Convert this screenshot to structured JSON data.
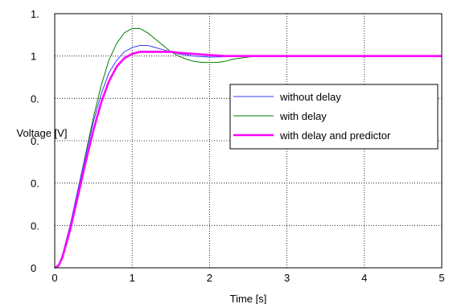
{
  "chart_data": {
    "type": "line",
    "xlabel": "Time [s]",
    "ylabel": "Voltage [V]",
    "xlim": [
      0,
      5
    ],
    "ylim": [
      0,
      1.2
    ],
    "xticks": [
      {
        "value": 0,
        "label": "0"
      },
      {
        "value": 1,
        "label": "1"
      },
      {
        "value": 2,
        "label": "2"
      },
      {
        "value": 3,
        "label": "3"
      },
      {
        "value": 4,
        "label": "4"
      },
      {
        "value": 5,
        "label": "5"
      }
    ],
    "yticks": [
      {
        "value": 0,
        "label": "0"
      },
      {
        "value": 0.2,
        "label": "0."
      },
      {
        "value": 0.4,
        "label": "0."
      },
      {
        "value": 0.6,
        "label": "0."
      },
      {
        "value": 0.8,
        "label": "0."
      },
      {
        "value": 1.0,
        "label": "1"
      },
      {
        "value": 1.2,
        "label": "1."
      }
    ],
    "grid": true,
    "legend_position": "right",
    "series": [
      {
        "name": "without delay",
        "color": "#3a3aff",
        "x": [
          0,
          0.05,
          0.1,
          0.2,
          0.3,
          0.4,
          0.5,
          0.6,
          0.7,
          0.8,
          0.9,
          1.0,
          1.1,
          1.2,
          1.3,
          1.4,
          1.6,
          1.8,
          2.0,
          2.2,
          2.4,
          2.6,
          3.0,
          3.5,
          4.0,
          4.5,
          5.0
        ],
        "y": [
          0,
          0.01,
          0.06,
          0.2,
          0.37,
          0.53,
          0.69,
          0.82,
          0.92,
          0.98,
          1.02,
          1.04,
          1.05,
          1.05,
          1.04,
          1.03,
          1.01,
          1.0,
          0.995,
          0.997,
          1.0,
          1.0,
          1.0,
          1.0,
          1.0,
          1.0,
          1.0
        ]
      },
      {
        "name": "with delay",
        "color": "#008000",
        "x": [
          0,
          0.05,
          0.1,
          0.2,
          0.3,
          0.4,
          0.5,
          0.6,
          0.7,
          0.8,
          0.9,
          1.0,
          1.1,
          1.2,
          1.3,
          1.4,
          1.5,
          1.6,
          1.7,
          1.8,
          1.9,
          2.0,
          2.1,
          2.2,
          2.3,
          2.4,
          2.6,
          2.8,
          3.0,
          3.5,
          4.0,
          4.5,
          5.0
        ],
        "y": [
          0,
          0.01,
          0.06,
          0.2,
          0.37,
          0.54,
          0.71,
          0.86,
          0.98,
          1.06,
          1.11,
          1.13,
          1.13,
          1.11,
          1.08,
          1.05,
          1.02,
          1.0,
          0.985,
          0.975,
          0.97,
          0.97,
          0.97,
          0.975,
          0.985,
          0.99,
          1.0,
          1.0,
          1.0,
          1.0,
          1.0,
          1.0,
          1.0
        ]
      },
      {
        "name": "with delay and predictor",
        "color": "#ff00ff",
        "x": [
          0,
          0.05,
          0.1,
          0.2,
          0.3,
          0.4,
          0.5,
          0.6,
          0.7,
          0.8,
          0.9,
          1.0,
          1.1,
          1.2,
          1.3,
          1.4,
          1.5,
          1.6,
          1.8,
          2.0,
          2.2,
          2.4,
          2.6,
          3.0,
          3.5,
          4.0,
          4.5,
          5.0
        ],
        "y": [
          0,
          0.01,
          0.05,
          0.18,
          0.34,
          0.5,
          0.65,
          0.78,
          0.88,
          0.95,
          0.99,
          1.01,
          1.02,
          1.02,
          1.02,
          1.02,
          1.02,
          1.015,
          1.01,
          1.005,
          1.0,
          1.0,
          1.0,
          1.0,
          1.0,
          1.0,
          1.0,
          1.0
        ]
      }
    ]
  }
}
